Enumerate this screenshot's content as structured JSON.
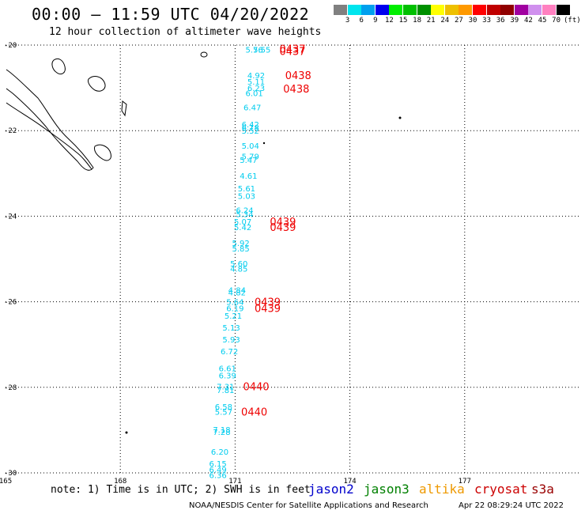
{
  "header": {
    "title": "00:00 — 11:59 UTC 04/20/2022",
    "subtitle": "12 hour collection of altimeter wave heights"
  },
  "legend": {
    "colors": [
      "#808080",
      "#00e5ee",
      "#00a0ee",
      "#0000ee",
      "#00ee00",
      "#00c000",
      "#009000",
      "#ffff00",
      "#eec000",
      "#ff9900",
      "#ff0000",
      "#c00000",
      "#900000",
      "#a000a0",
      "#d090ee",
      "#ff80c0",
      "#000000"
    ],
    "labels": [
      "3",
      "6",
      "9",
      "12",
      "15",
      "18",
      "21",
      "24",
      "27",
      "30",
      "33",
      "36",
      "39",
      "42",
      "45",
      "70"
    ],
    "unit": "(ft)"
  },
  "footer": {
    "note": "note: 1) Time is in UTC; 2) SWH is in feet",
    "satellites": [
      {
        "name": "jason2",
        "color": "#0000cc"
      },
      {
        "name": "jason3",
        "color": "#008000"
      },
      {
        "name": "altika",
        "color": "#ee9900"
      },
      {
        "name": "cryosat",
        "color": "#cc0000"
      },
      {
        "name": "s3a",
        "color": "#990000"
      }
    ],
    "credit": "NOAA/NESDIS Center for Satellite Applications and Research",
    "stamp": "Apr 22 08:29:24 UTC 2022"
  },
  "chart_data": {
    "type": "scatter",
    "title": "00:00 — 11:59 UTC 04/20/2022",
    "subtitle": "12 hour collection of altimeter wave heights",
    "xlabel": "",
    "ylabel": "",
    "xlim": [
      165,
      180
    ],
    "ylim": [
      -30,
      -20
    ],
    "x_ticks": [
      165,
      168,
      171,
      174,
      177
    ],
    "y_ticks": [
      -20,
      -22,
      -24,
      -26,
      -28,
      -30
    ],
    "grid": true,
    "point_color": "#00ccee",
    "time_color": "#ee0000",
    "points": [
      {
        "lon": 171.5,
        "lat": -20.1,
        "swh": "5.76"
      },
      {
        "lon": 171.7,
        "lat": -20.1,
        "swh": "5.55"
      },
      {
        "lon": 171.55,
        "lat": -20.7,
        "swh": "4.92"
      },
      {
        "lon": 171.55,
        "lat": -20.85,
        "swh": "5.11"
      },
      {
        "lon": 171.55,
        "lat": -21.0,
        "swh": "6.23"
      },
      {
        "lon": 171.5,
        "lat": -21.12,
        "swh": "6.01"
      },
      {
        "lon": 171.45,
        "lat": -21.45,
        "swh": "6.47"
      },
      {
        "lon": 171.4,
        "lat": -21.85,
        "swh": "6.42"
      },
      {
        "lon": 171.4,
        "lat": -21.92,
        "swh": "6.18"
      },
      {
        "lon": 171.4,
        "lat": -22.0,
        "swh": "5.52"
      },
      {
        "lon": 171.4,
        "lat": -22.35,
        "swh": "5.04"
      },
      {
        "lon": 171.4,
        "lat": -22.6,
        "swh": "5.79"
      },
      {
        "lon": 171.35,
        "lat": -22.68,
        "swh": "5.47"
      },
      {
        "lon": 171.35,
        "lat": -23.05,
        "swh": "4.61"
      },
      {
        "lon": 171.3,
        "lat": -23.35,
        "swh": "5.61"
      },
      {
        "lon": 171.3,
        "lat": -23.52,
        "swh": "5.03"
      },
      {
        "lon": 171.25,
        "lat": -23.85,
        "swh": "6.24"
      },
      {
        "lon": 171.25,
        "lat": -23.95,
        "swh": "5.34"
      },
      {
        "lon": 171.2,
        "lat": -24.12,
        "swh": "5.07"
      },
      {
        "lon": 171.2,
        "lat": -24.25,
        "swh": "5.42"
      },
      {
        "lon": 171.15,
        "lat": -24.62,
        "swh": "5.92"
      },
      {
        "lon": 171.15,
        "lat": -24.75,
        "swh": "5.85"
      },
      {
        "lon": 171.1,
        "lat": -25.1,
        "swh": "5.60"
      },
      {
        "lon": 171.1,
        "lat": -25.22,
        "swh": "4.85"
      },
      {
        "lon": 171.05,
        "lat": -25.72,
        "swh": "4.84"
      },
      {
        "lon": 171.05,
        "lat": -25.78,
        "swh": "4.82"
      },
      {
        "lon": 171.0,
        "lat": -26.0,
        "swh": "5.64"
      },
      {
        "lon": 171.0,
        "lat": -26.15,
        "swh": "6.19"
      },
      {
        "lon": 170.95,
        "lat": -26.32,
        "swh": "5.21"
      },
      {
        "lon": 170.9,
        "lat": -26.6,
        "swh": "5.13"
      },
      {
        "lon": 170.9,
        "lat": -26.88,
        "swh": "5.93"
      },
      {
        "lon": 170.85,
        "lat": -27.15,
        "swh": "6.72"
      },
      {
        "lon": 170.8,
        "lat": -27.55,
        "swh": "6.61"
      },
      {
        "lon": 170.8,
        "lat": -27.72,
        "swh": "6.39"
      },
      {
        "lon": 170.75,
        "lat": -27.98,
        "swh": "7.31"
      },
      {
        "lon": 170.75,
        "lat": -28.06,
        "swh": "7.81"
      },
      {
        "lon": 170.7,
        "lat": -28.45,
        "swh": "6.58"
      },
      {
        "lon": 170.7,
        "lat": -28.57,
        "swh": "5.57"
      },
      {
        "lon": 170.65,
        "lat": -28.98,
        "swh": "7.18"
      },
      {
        "lon": 170.65,
        "lat": -29.04,
        "swh": "7.28"
      },
      {
        "lon": 170.6,
        "lat": -29.5,
        "swh": "6.20"
      },
      {
        "lon": 170.55,
        "lat": -29.78,
        "swh": "6.15"
      },
      {
        "lon": 170.55,
        "lat": -29.92,
        "swh": "6.49"
      },
      {
        "lon": 170.55,
        "lat": -30.05,
        "swh": "6.36"
      }
    ],
    "time_labels": [
      {
        "lon": 172.5,
        "lat": -20.08,
        "text": "0437"
      },
      {
        "lon": 172.5,
        "lat": -20.14,
        "text": "0437"
      },
      {
        "lon": 172.65,
        "lat": -20.7,
        "text": "0438"
      },
      {
        "lon": 172.6,
        "lat": -21.02,
        "text": "0438"
      },
      {
        "lon": 172.25,
        "lat": -24.12,
        "text": "0439"
      },
      {
        "lon": 172.25,
        "lat": -24.25,
        "text": "0439"
      },
      {
        "lon": 171.85,
        "lat": -26.0,
        "text": "0439"
      },
      {
        "lon": 171.85,
        "lat": -26.15,
        "text": "0439"
      },
      {
        "lon": 171.55,
        "lat": -27.98,
        "text": "0440"
      },
      {
        "lon": 171.5,
        "lat": -28.57,
        "text": "0440"
      }
    ]
  }
}
